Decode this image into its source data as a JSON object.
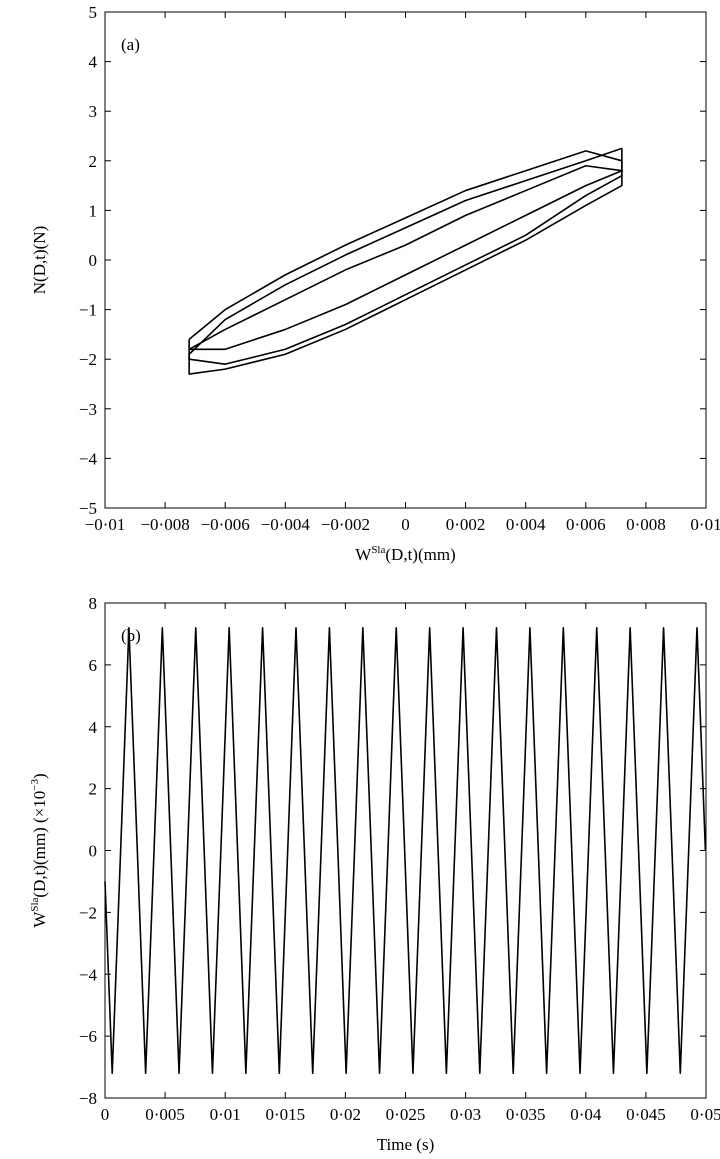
{
  "chart_data": [
    {
      "type": "line",
      "annotation": "(a)",
      "xlabel": [
        "W",
        "Sla",
        "(D,t)(mm)"
      ],
      "ylabel": [
        "N(D,t)(N)"
      ],
      "xlim": [
        -0.01,
        0.01
      ],
      "xticks": [
        {
          "value": -0.01,
          "label": "−0·01"
        },
        {
          "value": -0.008,
          "label": "−0·008"
        },
        {
          "value": -0.006,
          "label": "−0·006"
        },
        {
          "value": -0.004,
          "label": "−0·004"
        },
        {
          "value": -0.002,
          "label": "−0·002"
        },
        0,
        {
          "value": 0.002,
          "label": "0·002"
        },
        {
          "value": 0.004,
          "label": "0·004"
        },
        {
          "value": 0.006,
          "label": "0·006"
        },
        {
          "value": 0.008,
          "label": "0·008"
        },
        {
          "value": 0.01,
          "label": "0·01"
        }
      ],
      "ylim": [
        -5,
        5
      ],
      "yticks": [
        {
          "value": -5,
          "label": "−5"
        },
        {
          "value": -4,
          "label": "−4"
        },
        {
          "value": -3,
          "label": "−3"
        },
        {
          "value": -2,
          "label": "−2"
        },
        {
          "value": -1,
          "label": "−1"
        },
        0,
        1,
        2,
        3,
        4,
        5
      ],
      "series": [
        {
          "color": "#000000",
          "x": [
            -0.0072,
            -0.006,
            -0.004,
            -0.002,
            0,
            0.002,
            0.004,
            0.006,
            0.0072,
            0.0072,
            0.006,
            0.004,
            0.002,
            0,
            -0.002,
            -0.004,
            -0.006,
            -0.0072,
            -0.0072
          ],
          "values": [
            -1.6,
            -1.0,
            -0.3,
            0.3,
            0.85,
            1.4,
            1.8,
            2.2,
            2.0,
            1.7,
            1.3,
            0.5,
            -0.1,
            -0.7,
            -1.3,
            -1.8,
            -2.1,
            -2.0,
            -1.6
          ]
        },
        {
          "color": "#000000",
          "x": [
            -0.0072,
            -0.006,
            -0.004,
            -0.002,
            0,
            0.002,
            0.004,
            0.006,
            0.0072,
            0.0072,
            0.006,
            0.004,
            0.002,
            0,
            -0.002,
            -0.004,
            -0.006,
            -0.0072,
            -0.0072
          ],
          "values": [
            -1.9,
            -1.2,
            -0.5,
            0.1,
            0.65,
            1.2,
            1.6,
            2.0,
            2.25,
            1.5,
            1.1,
            0.4,
            -0.2,
            -0.8,
            -1.4,
            -1.9,
            -2.2,
            -2.3,
            -1.9
          ]
        },
        {
          "color": "#000000",
          "x": [
            -0.0072,
            -0.006,
            -0.004,
            -0.002,
            0,
            0.002,
            0.004,
            0.006,
            0.0072,
            0.006,
            0.004,
            0.002,
            0,
            -0.002,
            -0.004,
            -0.006,
            -0.0072
          ],
          "values": [
            -1.8,
            -1.4,
            -0.8,
            -0.2,
            0.3,
            0.9,
            1.4,
            1.9,
            1.8,
            1.5,
            0.9,
            0.3,
            -0.3,
            -0.9,
            -1.4,
            -1.8,
            -1.8
          ]
        }
      ]
    },
    {
      "type": "line",
      "annotation": "(b)",
      "xlabel": [
        "Time (s)"
      ],
      "ylabel": [
        "W",
        "Sla",
        "(D,t)(mm) (×10",
        "−3",
        ")"
      ],
      "xlim": [
        0,
        0.05
      ],
      "xticks": [
        0,
        {
          "value": 0.005,
          "label": "0·005"
        },
        {
          "value": 0.01,
          "label": "0·01"
        },
        {
          "value": 0.015,
          "label": "0·015"
        },
        {
          "value": 0.02,
          "label": "0·02"
        },
        {
          "value": 0.025,
          "label": "0·025"
        },
        {
          "value": 0.03,
          "label": "0·03"
        },
        {
          "value": 0.035,
          "label": "0·035"
        },
        {
          "value": 0.04,
          "label": "0·04"
        },
        {
          "value": 0.045,
          "label": "0·045"
        },
        {
          "value": 0.05,
          "label": "0·05"
        }
      ],
      "ylim": [
        -8,
        8
      ],
      "yticks": [
        {
          "value": -8,
          "label": "−8"
        },
        {
          "value": -6,
          "label": "−6"
        },
        {
          "value": -4,
          "label": "−4"
        },
        {
          "value": -2,
          "label": "−2"
        },
        0,
        2,
        4,
        6,
        8
      ],
      "series": [
        {
          "color": "#000000",
          "x": [
            0,
            0.0006,
            0.0013,
            0.00199,
            0.00269,
            0.00338,
            0.00408,
            0.00477,
            0.00547,
            0.00616,
            0.00686,
            0.00755,
            0.00825,
            0.00894,
            0.00964,
            0.01033,
            0.01103,
            0.01172,
            0.01242,
            0.01311,
            0.01381,
            0.0145,
            0.0152,
            0.01589,
            0.01659,
            0.01728,
            0.01798,
            0.01867,
            0.01937,
            0.02006,
            0.02076,
            0.02145,
            0.02215,
            0.02284,
            0.02354,
            0.02423,
            0.02493,
            0.02562,
            0.02632,
            0.02701,
            0.02771,
            0.0284,
            0.0291,
            0.02979,
            0.03049,
            0.03118,
            0.03188,
            0.03257,
            0.03327,
            0.03396,
            0.03466,
            0.03535,
            0.03605,
            0.03674,
            0.03744,
            0.03813,
            0.03883,
            0.03952,
            0.04022,
            0.04091,
            0.04161,
            0.0423,
            0.043,
            0.04369,
            0.04439,
            0.04508,
            0.04578,
            0.04647,
            0.04717,
            0.04786,
            0.04856,
            0.04925,
            0.04995
          ],
          "values": [
            -1.0,
            -7.2,
            0,
            7.2,
            0,
            -7.2,
            0,
            7.2,
            0,
            -7.2,
            0,
            7.2,
            0,
            -7.2,
            0,
            7.2,
            0,
            -7.2,
            0,
            7.2,
            0,
            -7.2,
            0,
            7.2,
            0,
            -7.2,
            0,
            7.2,
            0,
            -7.2,
            0,
            7.2,
            0,
            -7.2,
            0,
            7.2,
            0,
            -7.2,
            0,
            7.2,
            0,
            -7.2,
            0,
            7.2,
            0,
            -7.2,
            0,
            7.2,
            0,
            -7.2,
            0,
            7.2,
            0,
            -7.2,
            0,
            7.2,
            0,
            -7.2,
            0,
            7.2,
            0,
            -7.2,
            0,
            7.2,
            0,
            -7.2,
            0,
            7.2,
            0,
            -7.2,
            0,
            7.2,
            0
          ]
        }
      ]
    }
  ]
}
